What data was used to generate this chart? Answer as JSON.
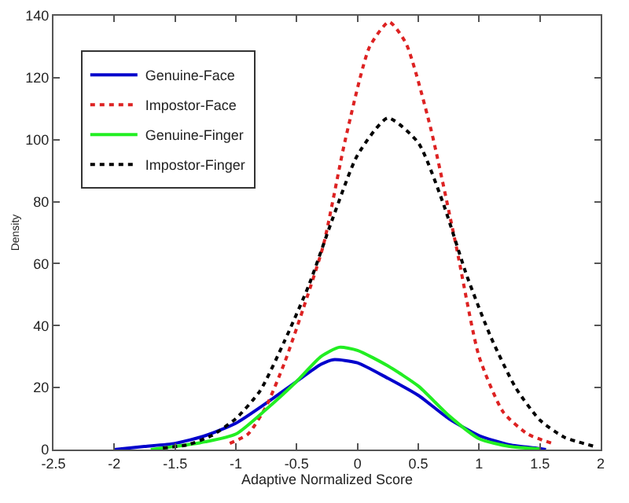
{
  "chart_data": {
    "type": "line",
    "xlabel": "Adaptive Normalized Score",
    "ylabel": "Density",
    "xlim": [
      -2.5,
      2
    ],
    "xticks": [
      -2.5,
      -2,
      -1.5,
      -1,
      -0.5,
      0,
      0.5,
      1,
      1.5,
      2
    ],
    "ylim": [
      0,
      140
    ],
    "yticks": [
      0,
      20,
      40,
      60,
      80,
      100,
      120,
      140
    ],
    "grid": false,
    "legend": "top left",
    "marker": "none",
    "series": [
      {
        "name": "Genuine-Face",
        "color": "#0000cc",
        "line_style": "solid",
        "x": [
          -2,
          -1.75,
          -1.5,
          -1.25,
          -1,
          -0.75,
          -0.5,
          -0.3,
          -0.2,
          0,
          0.25,
          0.5,
          0.75,
          1,
          1.25,
          1.5,
          1.55
        ],
        "values": [
          0,
          1,
          2,
          4.5,
          8.5,
          15,
          22,
          27.5,
          29,
          28,
          23,
          17.5,
          10,
          4.5,
          1.5,
          0.3,
          0
        ]
      },
      {
        "name": "Impostor-Face",
        "color": "#dd2222",
        "line_style": "dotted",
        "x": [
          -1.05,
          -0.9,
          -0.75,
          -0.6,
          -0.45,
          -0.28,
          -0.1,
          0.1,
          0.26,
          0.4,
          0.6,
          0.81,
          1,
          1.2,
          1.4,
          1.6
        ],
        "values": [
          2,
          5,
          14,
          28,
          45,
          66,
          100,
          130,
          138,
          131,
          104,
          66,
          30,
          12,
          5,
          2
        ]
      },
      {
        "name": "Genuine-Finger",
        "color": "#22ee22",
        "line_style": "solid",
        "x": [
          -1.7,
          -1.5,
          -1.25,
          -1,
          -0.75,
          -0.5,
          -0.3,
          -0.15,
          0,
          0.25,
          0.5,
          0.75,
          1,
          1.25,
          1.5
        ],
        "values": [
          0,
          1,
          2.5,
          5,
          13,
          22,
          30,
          33,
          32,
          27,
          20.5,
          11,
          3.5,
          1,
          0.2
        ]
      },
      {
        "name": "Impostor-Finger",
        "color": "#000000",
        "line_style": "dotted",
        "x": [
          -1.6,
          -1.4,
          -1.2,
          -1,
          -0.8,
          -0.6,
          -0.4,
          -0.2,
          0,
          0.25,
          0.5,
          0.7,
          0.9,
          1.1,
          1.3,
          1.5,
          1.7,
          1.95
        ],
        "values": [
          0.5,
          1.5,
          4.5,
          10,
          19,
          35,
          53,
          75,
          95,
          107,
          99,
          80,
          56,
          36,
          20,
          9.5,
          4,
          1
        ]
      }
    ]
  }
}
